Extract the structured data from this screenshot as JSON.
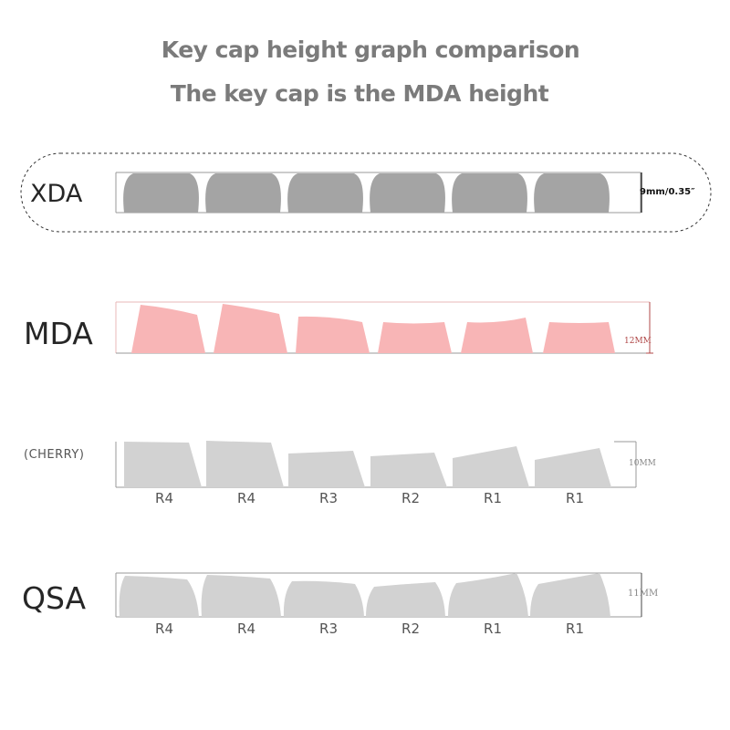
{
  "header": {
    "title": "Key cap height graph comparison",
    "subtitle": "The key cap is the MDA height"
  },
  "profiles": [
    {
      "label": "XDA",
      "dimension": "9mm/0.35″",
      "rows": [],
      "color": "#a4a4a4"
    },
    {
      "label": "MDA",
      "dimension": "12MM",
      "rows": [],
      "color": "#f8b5b6"
    },
    {
      "label": "(CHERRY)",
      "dimension": "10MM",
      "rows": [
        "R4",
        "R4",
        "R3",
        "R2",
        "R1",
        "R1"
      ],
      "color": "#d2d2d2"
    },
    {
      "label": "QSA",
      "dimension": "11MM",
      "rows": [
        "R4",
        "R4",
        "R3",
        "R2",
        "R1",
        "R1"
      ],
      "color": "#d2d2d2"
    }
  ],
  "colors": {
    "title": "#7b7b7b",
    "mda_dimension": "#b04848"
  }
}
